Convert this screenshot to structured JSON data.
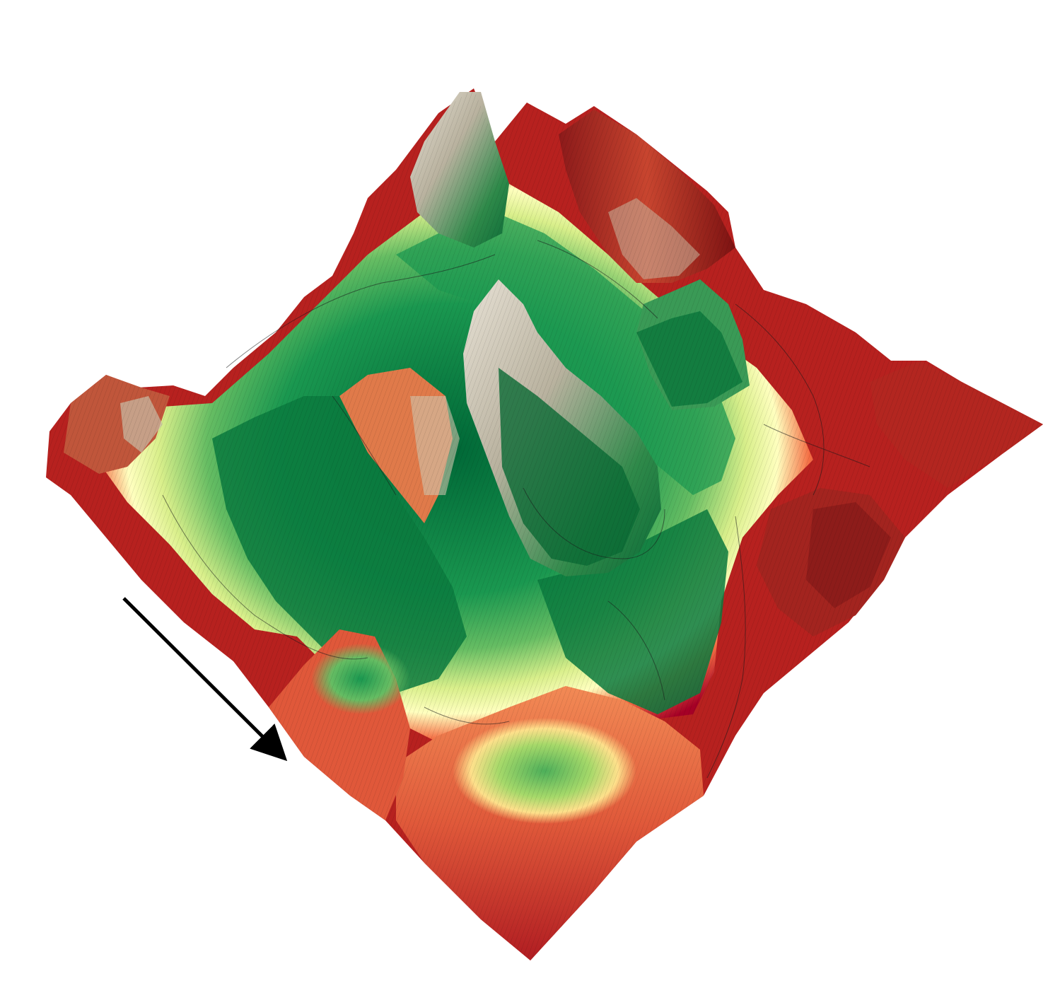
{
  "figure": {
    "kind": "3d-surface-plot",
    "colormap": {
      "name": "red-yellow-green",
      "low": "#006837",
      "mid_low": "#66bd63",
      "mid": "#ffffbf",
      "mid_high": "#f46d43",
      "high": "#a50026",
      "ridge_highlight": "#d9d0c0"
    },
    "contour_lines": true,
    "arrow": {
      "present": true,
      "color": "#000000",
      "direction": "down-right"
    },
    "background": "#ffffff"
  }
}
